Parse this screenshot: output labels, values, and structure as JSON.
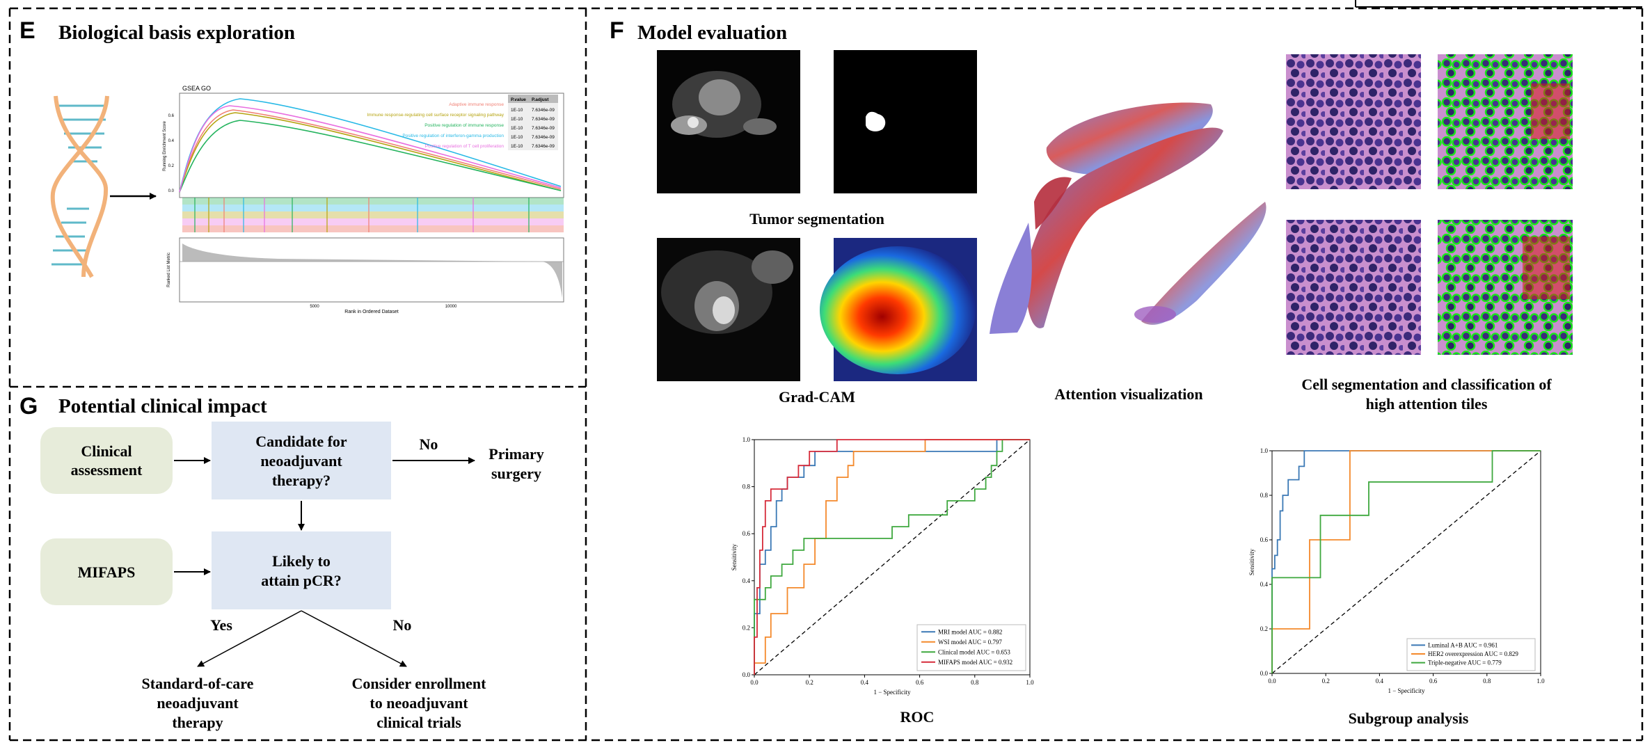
{
  "panels": {
    "E": {
      "letter": "E",
      "title": "Biological basis exploration",
      "gsea": {
        "plot_title": "GSEA GO",
        "y_label_top": "Running Enrichment Score",
        "y_label_bottom": "Ranked List Metric",
        "x_label": "Rank in Ordered Dataset",
        "x_ticks": [
          "5000",
          "10000"
        ],
        "y_ticks": [
          "0.6",
          "0.4",
          "0.2",
          "0.0"
        ],
        "table_header": [
          "P.value",
          "P.adjust"
        ],
        "terms": [
          {
            "name": "Adaptive immune response",
            "color": "#f07f73",
            "pvalue": "1E-10",
            "padjust": "7.6346e-09"
          },
          {
            "name": "Immune response-regulating cell surface receptor signaling pathway",
            "color": "#b5a30e",
            "pvalue": "1E-10",
            "padjust": "7.6346e-09"
          },
          {
            "name": "Positive regulation of immune response",
            "color": "#23b35d",
            "pvalue": "1E-10",
            "padjust": "7.6346e-09"
          },
          {
            "name": "Positive regulation of interferon-gamma production",
            "color": "#27b9e6",
            "pvalue": "1E-10",
            "padjust": "7.6346e-09"
          },
          {
            "name": "Positive regulation of T cell proliferation",
            "color": "#e86ee0",
            "pvalue": "1E-10",
            "padjust": "7.6346e-09"
          }
        ]
      }
    },
    "F": {
      "letter": "F",
      "title": "Model evaluation",
      "tumor_caption": "Tumor segmentation",
      "gradcam_caption": "Grad-CAM",
      "attention_caption": "Attention visualization",
      "cell_caption_line1": "Cell segmentation and classification of",
      "cell_caption_line2": "high attention tiles",
      "roc_caption": "ROC",
      "subgroup_caption": "Subgroup analysis"
    },
    "G": {
      "letter": "G",
      "title": "Potential clinical impact",
      "clinical_line1": "Clinical",
      "clinical_line2": "assessment",
      "candidate_line1": "Candidate for",
      "candidate_line2": "neoadjuvant",
      "candidate_line3": "therapy?",
      "no_label_1": "No",
      "primary_line1": "Primary",
      "primary_line2": "surgery",
      "mifaps": "MIFAPS",
      "likely_line1": "Likely to",
      "likely_line2": "attain pCR?",
      "yes_label": "Yes",
      "no_label_2": "No",
      "standard_line1": "Standard-of-care",
      "standard_line2": "neoadjuvant",
      "standard_line3": "therapy",
      "consider_line1": "Consider enrollment",
      "consider_line2": "to neoadjuvant",
      "consider_line3": "clinical trials"
    }
  },
  "chart_data": [
    {
      "type": "line",
      "title": "",
      "xlabel": "1 − Specificity",
      "ylabel": "Sensitivity",
      "xlim": [
        0,
        1
      ],
      "ylim": [
        0,
        1
      ],
      "ticks": [
        "0.0",
        "0.2",
        "0.4",
        "0.6",
        "0.8",
        "1.0"
      ],
      "legend_placement": "bottom-right",
      "series": [
        {
          "name": "MRI model AUC = 0.882",
          "color": "#3a78b5",
          "points": [
            [
              0,
              0
            ],
            [
              0,
              0.26
            ],
            [
              0.02,
              0.26
            ],
            [
              0.02,
              0.47
            ],
            [
              0.04,
              0.47
            ],
            [
              0.04,
              0.53
            ],
            [
              0.06,
              0.53
            ],
            [
              0.06,
              0.63
            ],
            [
              0.08,
              0.63
            ],
            [
              0.08,
              0.74
            ],
            [
              0.1,
              0.74
            ],
            [
              0.1,
              0.79
            ],
            [
              0.12,
              0.79
            ],
            [
              0.12,
              0.84
            ],
            [
              0.18,
              0.84
            ],
            [
              0.18,
              0.89
            ],
            [
              0.22,
              0.89
            ],
            [
              0.22,
              0.95
            ],
            [
              0.88,
              0.95
            ],
            [
              0.88,
              1
            ],
            [
              1,
              1
            ]
          ]
        },
        {
          "name": "WSI model AUC = 0.797",
          "color": "#f4892b",
          "points": [
            [
              0,
              0
            ],
            [
              0,
              0.05
            ],
            [
              0.04,
              0.05
            ],
            [
              0.04,
              0.16
            ],
            [
              0.06,
              0.16
            ],
            [
              0.06,
              0.26
            ],
            [
              0.12,
              0.26
            ],
            [
              0.12,
              0.37
            ],
            [
              0.18,
              0.37
            ],
            [
              0.18,
              0.47
            ],
            [
              0.22,
              0.47
            ],
            [
              0.22,
              0.58
            ],
            [
              0.26,
              0.58
            ],
            [
              0.26,
              0.74
            ],
            [
              0.3,
              0.74
            ],
            [
              0.3,
              0.84
            ],
            [
              0.34,
              0.84
            ],
            [
              0.34,
              0.89
            ],
            [
              0.36,
              0.89
            ],
            [
              0.36,
              0.95
            ],
            [
              0.62,
              0.95
            ],
            [
              0.62,
              1
            ],
            [
              1,
              1
            ]
          ]
        },
        {
          "name": "Clinical model AUC = 0.653",
          "color": "#3ea83e",
          "points": [
            [
              0,
              0
            ],
            [
              0,
              0.32
            ],
            [
              0.04,
              0.32
            ],
            [
              0.04,
              0.37
            ],
            [
              0.06,
              0.37
            ],
            [
              0.06,
              0.42
            ],
            [
              0.1,
              0.42
            ],
            [
              0.1,
              0.47
            ],
            [
              0.14,
              0.47
            ],
            [
              0.14,
              0.53
            ],
            [
              0.18,
              0.53
            ],
            [
              0.18,
              0.58
            ],
            [
              0.5,
              0.58
            ],
            [
              0.5,
              0.63
            ],
            [
              0.56,
              0.63
            ],
            [
              0.56,
              0.68
            ],
            [
              0.7,
              0.68
            ],
            [
              0.7,
              0.74
            ],
            [
              0.8,
              0.74
            ],
            [
              0.8,
              0.79
            ],
            [
              0.84,
              0.79
            ],
            [
              0.84,
              0.84
            ],
            [
              0.86,
              0.84
            ],
            [
              0.86,
              0.89
            ],
            [
              0.88,
              0.89
            ],
            [
              0.88,
              0.95
            ],
            [
              0.9,
              0.95
            ],
            [
              0.9,
              1
            ],
            [
              1,
              1
            ]
          ]
        },
        {
          "name": "MIFAPS model AUC = 0.932",
          "color": "#d62b3a",
          "points": [
            [
              0,
              0
            ],
            [
              0,
              0.16
            ],
            [
              0.01,
              0.16
            ],
            [
              0.01,
              0.37
            ],
            [
              0.02,
              0.37
            ],
            [
              0.02,
              0.53
            ],
            [
              0.03,
              0.53
            ],
            [
              0.03,
              0.63
            ],
            [
              0.04,
              0.63
            ],
            [
              0.04,
              0.74
            ],
            [
              0.06,
              0.74
            ],
            [
              0.06,
              0.79
            ],
            [
              0.12,
              0.79
            ],
            [
              0.12,
              0.84
            ],
            [
              0.16,
              0.84
            ],
            [
              0.16,
              0.89
            ],
            [
              0.2,
              0.89
            ],
            [
              0.2,
              0.95
            ],
            [
              0.3,
              0.95
            ],
            [
              0.3,
              1
            ],
            [
              1,
              1
            ]
          ]
        }
      ]
    },
    {
      "type": "line",
      "title": "",
      "xlabel": "1 − Specificity",
      "ylabel": "Sensitivity",
      "xlim": [
        0,
        1
      ],
      "ylim": [
        0,
        1
      ],
      "ticks": [
        "0.0",
        "0.2",
        "0.4",
        "0.6",
        "0.8",
        "1.0"
      ],
      "legend_placement": "bottom-right",
      "series": [
        {
          "name": "Luminal A+B AUC = 0.961",
          "color": "#3a78b5",
          "points": [
            [
              0,
              0
            ],
            [
              0,
              0.47
            ],
            [
              0.01,
              0.47
            ],
            [
              0.01,
              0.53
            ],
            [
              0.02,
              0.53
            ],
            [
              0.02,
              0.6
            ],
            [
              0.03,
              0.6
            ],
            [
              0.03,
              0.73
            ],
            [
              0.04,
              0.73
            ],
            [
              0.04,
              0.8
            ],
            [
              0.06,
              0.8
            ],
            [
              0.06,
              0.87
            ],
            [
              0.1,
              0.87
            ],
            [
              0.1,
              0.93
            ],
            [
              0.12,
              0.93
            ],
            [
              0.12,
              1
            ],
            [
              1,
              1
            ]
          ]
        },
        {
          "name": "HER2  overexpression AUC = 0.829",
          "color": "#f4892b",
          "points": [
            [
              0,
              0
            ],
            [
              0,
              0.2
            ],
            [
              0.14,
              0.2
            ],
            [
              0.14,
              0.6
            ],
            [
              0.29,
              0.6
            ],
            [
              0.29,
              1
            ],
            [
              1,
              1
            ]
          ]
        },
        {
          "name": "Triple-negative AUC = 0.779",
          "color": "#3ea83e",
          "points": [
            [
              0,
              0
            ],
            [
              0,
              0.43
            ],
            [
              0.18,
              0.43
            ],
            [
              0.18,
              0.71
            ],
            [
              0.36,
              0.71
            ],
            [
              0.36,
              0.86
            ],
            [
              0.82,
              0.86
            ],
            [
              0.82,
              1
            ],
            [
              1,
              1
            ]
          ]
        }
      ]
    }
  ]
}
